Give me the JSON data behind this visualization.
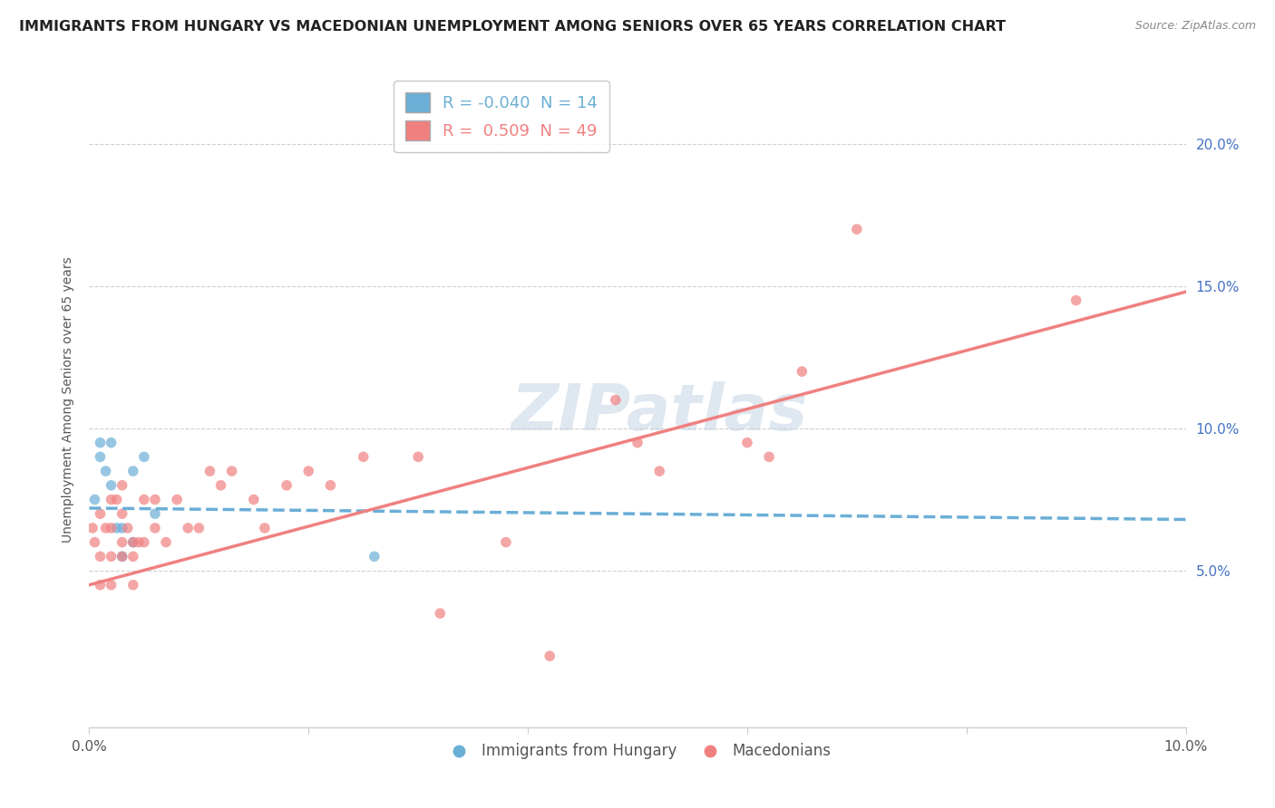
{
  "title": "IMMIGRANTS FROM HUNGARY VS MACEDONIAN UNEMPLOYMENT AMONG SENIORS OVER 65 YEARS CORRELATION CHART",
  "source": "Source: ZipAtlas.com",
  "ylabel": "Unemployment Among Seniors over 65 years",
  "legend_label_blue": "Immigrants from Hungary",
  "legend_label_pink": "Macedonians",
  "R_blue": -0.04,
  "N_blue": 14,
  "R_pink": 0.509,
  "N_pink": 49,
  "xlim": [
    0.0,
    0.1
  ],
  "ylim": [
    -0.005,
    0.225
  ],
  "blue_color": "#6baed6",
  "pink_color": "#f08080",
  "watermark_text": "ZIPatlas",
  "blue_scatter_x": [
    0.0005,
    0.001,
    0.001,
    0.0015,
    0.002,
    0.002,
    0.0025,
    0.003,
    0.003,
    0.004,
    0.004,
    0.005,
    0.006,
    0.026
  ],
  "blue_scatter_y": [
    0.075,
    0.09,
    0.095,
    0.085,
    0.095,
    0.08,
    0.065,
    0.055,
    0.065,
    0.085,
    0.06,
    0.09,
    0.07,
    0.055
  ],
  "pink_scatter_x": [
    0.0003,
    0.0005,
    0.001,
    0.001,
    0.001,
    0.0015,
    0.002,
    0.002,
    0.002,
    0.002,
    0.0025,
    0.003,
    0.003,
    0.003,
    0.003,
    0.0035,
    0.004,
    0.004,
    0.004,
    0.0045,
    0.005,
    0.005,
    0.006,
    0.006,
    0.007,
    0.008,
    0.009,
    0.01,
    0.011,
    0.012,
    0.013,
    0.015,
    0.016,
    0.018,
    0.02,
    0.022,
    0.025,
    0.03,
    0.032,
    0.038,
    0.042,
    0.048,
    0.05,
    0.052,
    0.06,
    0.062,
    0.065,
    0.07,
    0.09
  ],
  "pink_scatter_y": [
    0.065,
    0.06,
    0.055,
    0.045,
    0.07,
    0.065,
    0.075,
    0.065,
    0.055,
    0.045,
    0.075,
    0.07,
    0.08,
    0.06,
    0.055,
    0.065,
    0.06,
    0.055,
    0.045,
    0.06,
    0.075,
    0.06,
    0.065,
    0.075,
    0.06,
    0.075,
    0.065,
    0.065,
    0.085,
    0.08,
    0.085,
    0.075,
    0.065,
    0.08,
    0.085,
    0.08,
    0.09,
    0.09,
    0.035,
    0.06,
    0.02,
    0.11,
    0.095,
    0.085,
    0.095,
    0.09,
    0.12,
    0.17,
    0.145
  ],
  "blue_line_x": [
    0.0,
    0.1
  ],
  "blue_line_y": [
    0.072,
    0.068
  ],
  "pink_line_x": [
    0.0,
    0.1
  ],
  "pink_line_y": [
    0.045,
    0.148
  ],
  "x_ticks": [
    0.0,
    0.02,
    0.04,
    0.06,
    0.08,
    0.1
  ],
  "y_ticks_right": [
    0.05,
    0.1,
    0.15,
    0.2
  ],
  "y_tick_labels_right": [
    "5.0%",
    "10.0%",
    "15.0%",
    "20.0%"
  ],
  "x_tick_labels": [
    "0.0%",
    "",
    "",
    "",
    "",
    "10.0%"
  ],
  "title_fontsize": 11.5,
  "axis_label_fontsize": 10,
  "tick_fontsize": 11,
  "source_fontsize": 9,
  "background_color": "#ffffff",
  "grid_color": "#d0d0d0",
  "spine_color": "#cccccc"
}
